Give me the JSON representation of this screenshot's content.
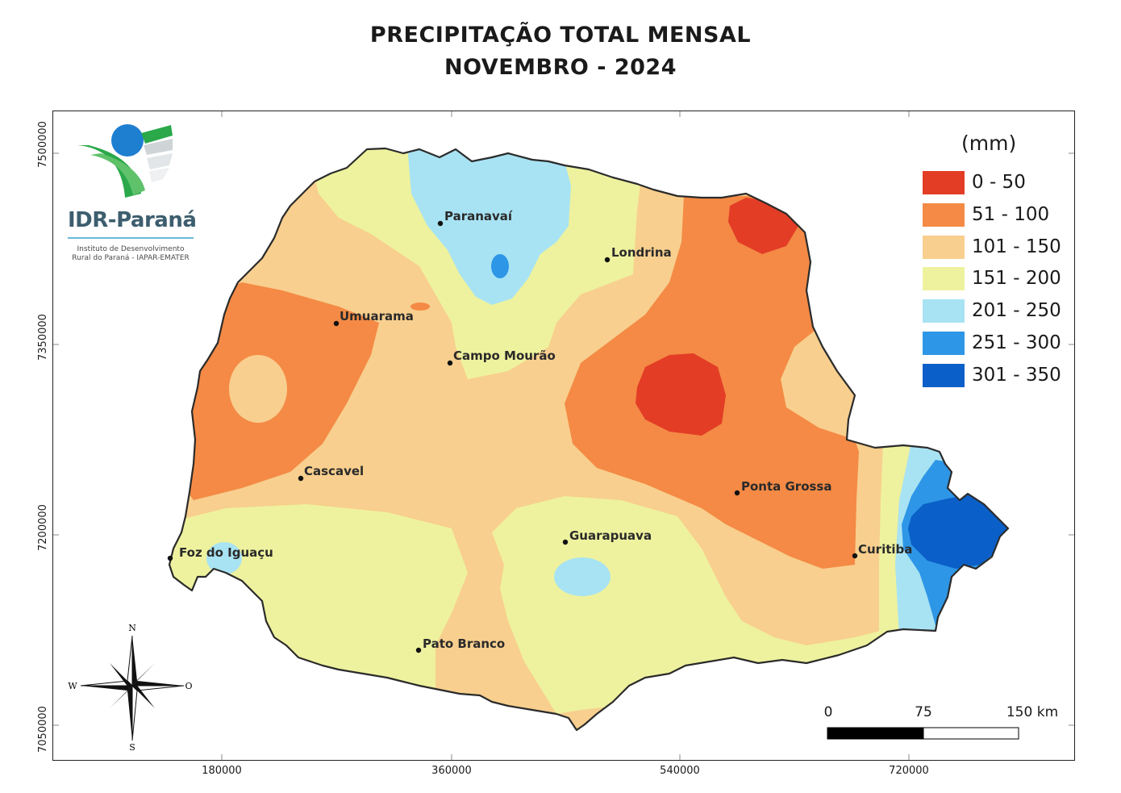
{
  "title": {
    "line1": "PRECIPITAÇÃO TOTAL MENSAL",
    "line2": "NOVEMBRO - 2024"
  },
  "axes": {
    "y_ticks": [
      "7500000",
      "7350000",
      "7200000",
      "7050000"
    ],
    "x_ticks": [
      "180000",
      "360000",
      "540000",
      "720000"
    ]
  },
  "legend": {
    "title": "(mm)",
    "items": [
      {
        "label": "0 - 50",
        "color": "#e33d26"
      },
      {
        "label": "51 - 100",
        "color": "#f48a45"
      },
      {
        "label": "101 - 150",
        "color": "#f8cf8e"
      },
      {
        "label": "151 - 200",
        "color": "#eef29e"
      },
      {
        "label": "201 - 250",
        "color": "#a8e3f3"
      },
      {
        "label": "251 - 300",
        "color": "#2e96e6"
      },
      {
        "label": "301 - 350",
        "color": "#0b5fc8"
      }
    ]
  },
  "cities": [
    {
      "name": "Paranavaí"
    },
    {
      "name": "Londrina"
    },
    {
      "name": "Umuarama"
    },
    {
      "name": "Campo Mourão"
    },
    {
      "name": "Cascavel"
    },
    {
      "name": "Ponta Grossa"
    },
    {
      "name": "Guarapuava"
    },
    {
      "name": "Curitiba"
    },
    {
      "name": "Foz do Iguaçu"
    },
    {
      "name": "Pato Branco"
    }
  ],
  "scale_bar": {
    "labels": [
      "0",
      "75",
      "150 km"
    ]
  },
  "north_arrow": {
    "n": "N",
    "s": "S",
    "w": "W",
    "o": "O"
  },
  "logo": {
    "name": "IDR-Paraná",
    "sub1": "Instituto de Desenvolvimento",
    "sub2": "Rural do Paraná - IAPAR-EMATER"
  },
  "colors": {
    "outline": "#2b2b2b",
    "frame": "#222222"
  }
}
